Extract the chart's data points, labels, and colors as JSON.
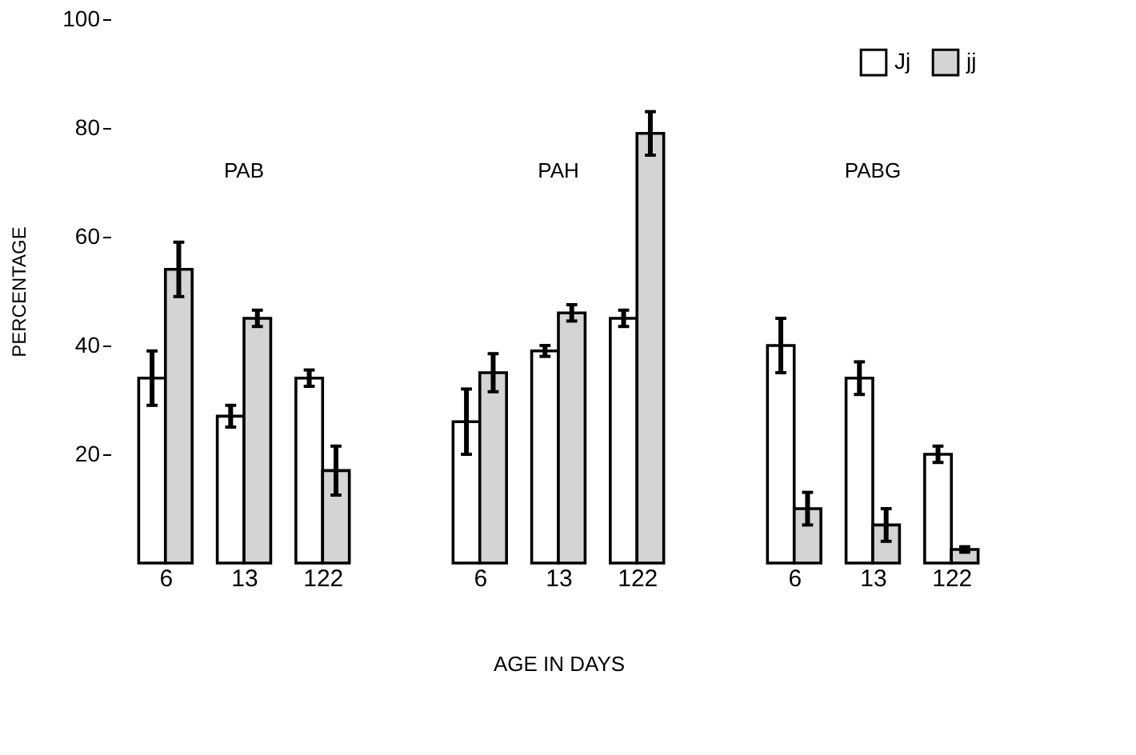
{
  "chart_data": {
    "type": "bar",
    "xlabel": "AGE IN DAYS",
    "ylabel": "PERCENTAGE",
    "categories": [
      "6",
      "13",
      "122",
      "6",
      "13",
      "122",
      "6",
      "13",
      "122"
    ],
    "series": [
      {
        "name": "Jj",
        "color": "#ffffff",
        "values": [
          34,
          27,
          34,
          26,
          39,
          45,
          40,
          34,
          20
        ],
        "errors": [
          5,
          2,
          1.5,
          6,
          1,
          1.5,
          5,
          3,
          1.5
        ]
      },
      {
        "name": "jj",
        "color": "#d4d4d4",
        "values": [
          54,
          45,
          17,
          35,
          46,
          79,
          10,
          7,
          2.5
        ],
        "errors": [
          5,
          1.5,
          4.5,
          3.5,
          1.5,
          4,
          3,
          3,
          0.5
        ]
      }
    ],
    "annotations": [
      "PAB",
      "PAH",
      "PABG"
    ],
    "ylim": [
      0,
      100
    ],
    "yticks": [
      20,
      40,
      60,
      80,
      100
    ],
    "grid": false,
    "legend": "top right"
  }
}
